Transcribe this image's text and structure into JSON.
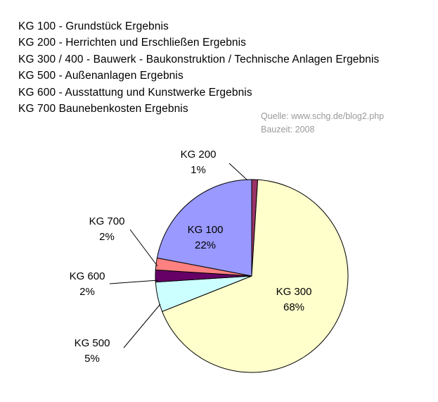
{
  "legend": [
    "KG 100 - Grundstück Ergebnis",
    "KG 200 - Herrichten und Erschließen Ergebnis",
    "KG 300 / 400 - Bauwerk - Baukonstruktion / Technische Anlagen Ergebnis",
    "KG 500 - Außenanlagen Ergebnis",
    "KG 600 - Ausstattung und Kunstwerke Ergebnis",
    "KG 700 Baunebenkosten Ergebnis"
  ],
  "source": {
    "line1": "Quelle: www.schg.de/blog2.php",
    "line2": "Bauzeit: 2008"
  },
  "chart_data": {
    "type": "pie",
    "title": "",
    "slices": [
      {
        "label": "KG 200",
        "value": 1,
        "pct_label": "1%",
        "color": "#993366"
      },
      {
        "label": "KG 300",
        "value": 68,
        "pct_label": "68%",
        "color": "#ffffcc"
      },
      {
        "label": "KG 500",
        "value": 5,
        "pct_label": "5%",
        "color": "#ccffff"
      },
      {
        "label": "KG 600",
        "value": 2,
        "pct_label": "2%",
        "color": "#660066"
      },
      {
        "label": "KG 700",
        "value": 2,
        "pct_label": "2%",
        "color": "#ff8080"
      },
      {
        "label": "KG 100",
        "value": 22,
        "pct_label": "22%",
        "color": "#9999ff"
      }
    ]
  }
}
